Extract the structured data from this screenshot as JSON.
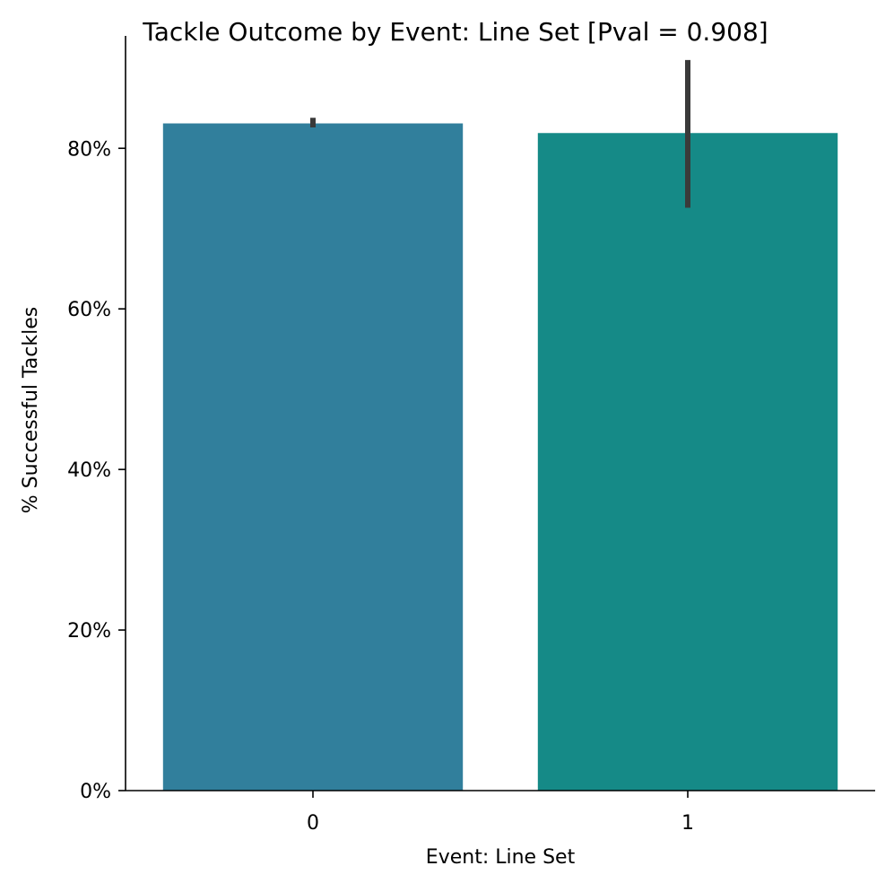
{
  "chart_data": {
    "type": "bar",
    "title": "Tackle Outcome by Event: Line Set [Pval = 0.908]",
    "xlabel": "Event: Line Set",
    "ylabel": "% Successful Tackles",
    "categories": [
      "0",
      "1"
    ],
    "values": [
      83.1,
      81.9
    ],
    "error_bars": [
      {
        "low": 82.6,
        "high": 83.8
      },
      {
        "low": 72.6,
        "high": 91.0
      }
    ],
    "ylim": [
      0,
      94
    ],
    "yticks": [
      0,
      20,
      40,
      60,
      80
    ],
    "ytick_labels": [
      "0%",
      "20%",
      "40%",
      "60%",
      "80%"
    ],
    "grid": false,
    "legend": "none"
  },
  "colors": {
    "bars": [
      "#317f9c",
      "#158a87"
    ],
    "error_bar": "#3a3a3a",
    "axis": "#000000"
  }
}
